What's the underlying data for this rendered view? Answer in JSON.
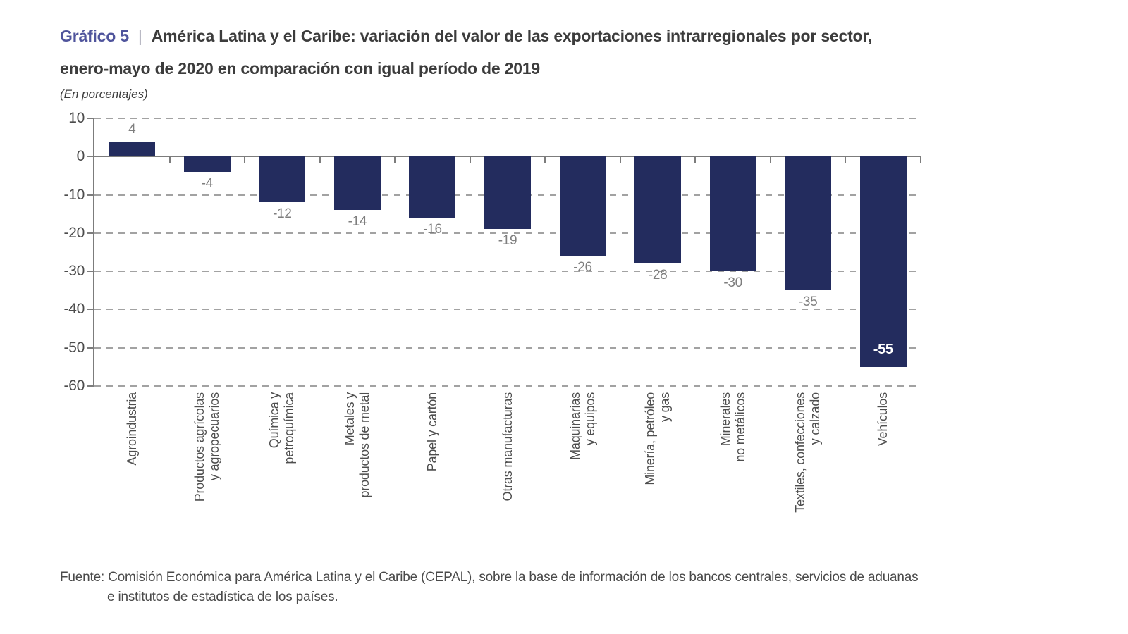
{
  "header": {
    "figure_label": "Gráfico 5",
    "separator": "|",
    "title_lines": [
      "América Latina y el Caribe: variación del valor de las exportaciones intrarregionales por sector,",
      "enero-mayo de 2020 en comparación con igual período de 2019"
    ],
    "subtitle": "(En porcentajes)"
  },
  "chart_data": {
    "type": "bar",
    "title": "América Latina y el Caribe: variación del valor de las exportaciones intrarregionales por sector, enero-mayo de 2020 en comparación con igual período de 2019",
    "unit_note": "En porcentajes",
    "categories": [
      "Agroindustria",
      "Productos agrícolas\ny agropecuarios",
      "Química y\npetroquímica",
      "Metales y\nproductos de metal",
      "Papel y cartón",
      "Otras manufacturas",
      "Maquinarias\ny equipos",
      "Minería, petróleo\ny gas",
      "Minerales\nno metálicos",
      "Textiles, confecciones\ny calzado",
      "Vehículos"
    ],
    "values": [
      4,
      -4,
      -12,
      -14,
      -16,
      -19,
      -26,
      -28,
      -30,
      -35,
      -55
    ],
    "ylim": [
      -60,
      10
    ],
    "yticks": [
      10,
      0,
      -10,
      -20,
      -30,
      -40,
      -50,
      -60
    ],
    "grid": "horizontal-dashed",
    "legend": "none",
    "bar_color": "#232c5e",
    "value_label_color": "#7e7e7e",
    "inside_value_label": {
      "index": 10,
      "color": "#ffffff"
    }
  },
  "footer": {
    "source_label": "Fuente:",
    "source_lines": [
      "Comisión Económica para América Latina y el Caribe (CEPAL), sobre la base de información de los bancos centrales, servicios de aduanas",
      "e institutos de estadística de los países."
    ]
  }
}
